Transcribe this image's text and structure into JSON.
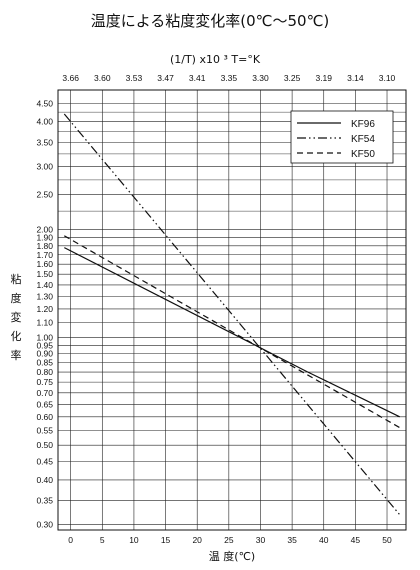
{
  "chart_data": {
    "type": "line",
    "title": "温度による粘度変化率(0℃〜50℃)",
    "xlabel": "温 度(℃)",
    "ylabel": "粘度変化率",
    "top_axis_label": "(1/T) x10 ³   T=°K",
    "x_scale": "linear",
    "y_scale": "log",
    "xlim": [
      -2,
      53
    ],
    "ylim": [
      0.29,
      4.9
    ],
    "x_ticks": [
      "0",
      "5",
      "10",
      "15",
      "20",
      "25",
      "30",
      "35",
      "40",
      "45",
      "50"
    ],
    "top_ticks": [
      "3.66",
      "3.60",
      "3.53",
      "3.47",
      "3.41",
      "3.35",
      "3.30",
      "3.25",
      "3.19",
      "3.14",
      "3.10"
    ],
    "y_ticks": [
      "0.30",
      "0.35",
      "0.40",
      "0.45",
      "0.50",
      "0.55",
      "0.60",
      "0.65",
      "0.70",
      "0.75",
      "0.80",
      "0.85",
      "0.90",
      "0.95",
      "1.00",
      "1.10",
      "1.20",
      "1.30",
      "1.40",
      "1.50",
      "1.60",
      "1.70",
      "1.80",
      "1.90",
      "2.00",
      "2.50",
      "3.00",
      "3.50",
      "4.00",
      "4.50"
    ],
    "grid": true,
    "legend_position": "top-right",
    "series": [
      {
        "name": "KF96",
        "style": "solid",
        "x": [
          -1,
          37.5,
          52
        ],
        "y": [
          1.78,
          0.8,
          0.6
        ]
      },
      {
        "name": "KF54",
        "style": "dashdotdot",
        "x": [
          -1,
          52
        ],
        "y": [
          4.2,
          0.32
        ]
      },
      {
        "name": "KF50",
        "style": "dashed",
        "x": [
          -1,
          52
        ],
        "y": [
          1.92,
          0.56
        ]
      }
    ]
  }
}
